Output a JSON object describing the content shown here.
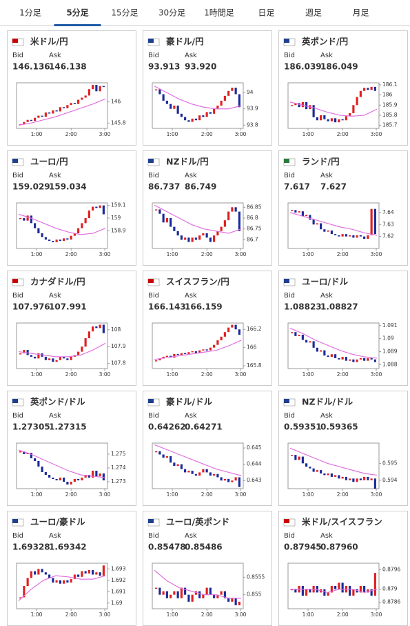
{
  "tabs": [
    "1分足",
    "5分足",
    "15分足",
    "30分足",
    "1時間足",
    "日足",
    "週足",
    "月足"
  ],
  "active_tab": 1,
  "bid_label": "Bid",
  "ask_label": "Ask",
  "time_labels": [
    "1:00",
    "2:00",
    "3:00"
  ],
  "pairs": [
    {
      "name": "米ドル/円",
      "color": "#7030a0",
      "bid": "146.136",
      "ask": "146.138",
      "ylim": [
        145.75,
        146.18
      ],
      "yticks": [
        145.8,
        146
      ],
      "close": [
        145.79,
        145.81,
        145.83,
        145.82,
        145.85,
        145.87,
        145.86,
        145.9,
        145.89,
        145.92,
        145.91,
        145.95,
        145.94,
        145.97,
        145.99,
        145.98,
        146.02,
        146.04,
        146.06,
        146.12,
        146.16,
        146.1,
        146.15,
        146.14
      ],
      "ma": [
        145.78,
        145.8,
        145.83,
        145.86,
        145.9,
        145.94,
        145.98,
        146.03
      ]
    },
    {
      "name": "豪ドル/円",
      "color": "#7030a0",
      "bid": "93.913",
      "ask": "93.920",
      "ylim": [
        93.78,
        94.06
      ],
      "yticks": [
        93.8,
        93.9,
        94
      ],
      "close": [
        94.02,
        93.99,
        93.95,
        93.93,
        93.9,
        93.92,
        93.87,
        93.85,
        93.83,
        93.82,
        93.84,
        93.83,
        93.86,
        93.85,
        93.88,
        93.87,
        93.9,
        93.92,
        93.95,
        93.98,
        94.01,
        94.03,
        93.99,
        93.91
      ],
      "ma": [
        94.04,
        94.0,
        93.96,
        93.93,
        93.91,
        93.9,
        93.9,
        93.92
      ]
    },
    {
      "name": "英ポンド/円",
      "color": "#7030a0",
      "bid": "186.039",
      "ask": "186.049",
      "ylim": [
        185.67,
        186.12
      ],
      "yticks": [
        185.7,
        185.8,
        185.9,
        186,
        186.1
      ],
      "close": [
        185.9,
        185.92,
        185.88,
        185.93,
        185.86,
        185.9,
        185.78,
        185.75,
        185.8,
        185.76,
        185.74,
        185.77,
        185.73,
        185.76,
        185.75,
        185.79,
        185.82,
        185.9,
        185.98,
        186.04,
        186.07,
        186.05,
        186.08,
        186.04
      ],
      "ma": [
        185.93,
        185.9,
        185.87,
        185.83,
        185.8,
        185.79,
        185.8,
        185.86
      ]
    },
    {
      "name": "ユーロ/円",
      "color": "#7030a0",
      "bid": "159.029",
      "ask": "159.034",
      "ylim": [
        158.76,
        159.12
      ],
      "yticks": [
        158.9,
        159,
        159.1
      ],
      "close": [
        159.0,
        158.98,
        159.02,
        158.96,
        158.92,
        158.88,
        158.85,
        158.83,
        158.82,
        158.81,
        158.83,
        158.82,
        158.84,
        158.83,
        158.86,
        158.88,
        158.92,
        158.96,
        159.0,
        159.06,
        159.09,
        159.08,
        159.1,
        159.03
      ],
      "ma": [
        159.03,
        159.0,
        158.96,
        158.92,
        158.89,
        158.87,
        158.88,
        158.92
      ]
    },
    {
      "name": "NZドル/円",
      "color": "#7030a0",
      "bid": "86.737",
      "ask": "86.749",
      "ylim": [
        86.66,
        86.87
      ],
      "yticks": [
        86.7,
        86.75,
        86.8,
        86.85
      ],
      "close": [
        86.84,
        86.82,
        86.78,
        86.8,
        86.76,
        86.74,
        86.72,
        86.7,
        86.71,
        86.69,
        86.71,
        86.7,
        86.72,
        86.73,
        86.71,
        86.69,
        86.72,
        86.74,
        86.76,
        86.79,
        86.83,
        86.85,
        86.83,
        86.74
      ],
      "ma": [
        86.86,
        86.83,
        86.8,
        86.77,
        86.75,
        86.74,
        86.73,
        86.75
      ]
    },
    {
      "name": "ランド/円",
      "color": "#7030a0",
      "bid": "7.617",
      "ask": "7.627",
      "ylim": [
        7.61,
        7.648
      ],
      "yticks": [
        7.62,
        7.63,
        7.64
      ],
      "close": [
        7.642,
        7.64,
        7.641,
        7.637,
        7.638,
        7.634,
        7.63,
        7.631,
        7.626,
        7.624,
        7.625,
        7.622,
        7.621,
        7.62,
        7.622,
        7.62,
        7.621,
        7.619,
        7.621,
        7.62,
        7.618,
        7.621,
        7.643,
        7.622
      ],
      "ma": [
        7.64,
        7.637,
        7.634,
        7.631,
        7.628,
        7.626,
        7.623,
        7.621
      ]
    },
    {
      "name": "カナダドル/円",
      "color": "#7030a0",
      "bid": "107.976",
      "ask": "107.991",
      "ylim": [
        107.77,
        108.04
      ],
      "yticks": [
        107.8,
        107.9,
        108
      ],
      "close": [
        107.86,
        107.88,
        107.85,
        107.84,
        107.83,
        107.86,
        107.84,
        107.82,
        107.83,
        107.81,
        107.82,
        107.84,
        107.83,
        107.82,
        107.84,
        107.85,
        107.87,
        107.9,
        107.95,
        107.99,
        108.02,
        108.01,
        108.03,
        107.98
      ],
      "ma": [
        107.87,
        107.86,
        107.85,
        107.84,
        107.84,
        107.85,
        107.88,
        107.92
      ]
    },
    {
      "name": "スイスフラン/円",
      "color": "#1f5aa6",
      "bid": "166.143",
      "ask": "166.159",
      "ylim": [
        165.77,
        166.27
      ],
      "yticks": [
        165.8,
        166,
        166.2
      ],
      "close": [
        165.86,
        165.88,
        165.9,
        165.91,
        165.89,
        165.93,
        165.92,
        165.94,
        165.93,
        165.95,
        165.96,
        165.94,
        165.97,
        165.98,
        165.97,
        166.0,
        166.03,
        166.08,
        166.12,
        166.17,
        166.22,
        166.25,
        166.2,
        166.14
      ],
      "ma": [
        165.87,
        165.89,
        165.91,
        165.93,
        165.95,
        165.97,
        166.02,
        166.08
      ]
    },
    {
      "name": "ユーロ/ドル",
      "color": "#1f5aa6",
      "bid": "1.08823",
      "ask": "1.08827",
      "ylim": [
        1.0877,
        1.0912
      ],
      "yticks": [
        1.088,
        1.089,
        1.09,
        1.091
      ],
      "close": [
        1.0905,
        1.0902,
        1.0903,
        1.0899,
        1.0897,
        1.0898,
        1.0893,
        1.089,
        1.0891,
        1.0887,
        1.0886,
        1.0888,
        1.0885,
        1.0884,
        1.0886,
        1.0883,
        1.0884,
        1.0882,
        1.0884,
        1.0885,
        1.0883,
        1.0885,
        1.0884,
        1.0882
      ],
      "ma": [
        1.0908,
        1.0904,
        1.0899,
        1.0895,
        1.0891,
        1.0888,
        1.0886,
        1.0885
      ]
    },
    {
      "name": "英ポンド/ドル",
      "color": "#1f5aa6",
      "bid": "1.27305",
      "ask": "1.27315",
      "ylim": [
        1.2725,
        1.2758
      ],
      "yticks": [
        1.273,
        1.274,
        1.275
      ],
      "close": [
        1.2752,
        1.275,
        1.2751,
        1.2747,
        1.2745,
        1.2741,
        1.2737,
        1.2735,
        1.2733,
        1.2732,
        1.2731,
        1.2733,
        1.273,
        1.2728,
        1.273,
        1.2732,
        1.2731,
        1.2733,
        1.2735,
        1.2733,
        1.2738,
        1.2734,
        1.2736,
        1.2731
      ],
      "ma": [
        1.2753,
        1.275,
        1.2746,
        1.2742,
        1.2738,
        1.2735,
        1.2734,
        1.2733
      ]
    },
    {
      "name": "豪ドル/ドル",
      "color": "#1f5aa6",
      "bid": "0.64262",
      "ask": "0.64271",
      "ylim": [
        0.6425,
        0.6453
      ],
      "yticks": [
        0.643,
        0.644,
        0.645
      ],
      "close": [
        0.6448,
        0.6446,
        0.6444,
        0.6445,
        0.6441,
        0.6439,
        0.644,
        0.6437,
        0.6435,
        0.6436,
        0.6434,
        0.6433,
        0.6435,
        0.6437,
        0.6435,
        0.6433,
        0.6434,
        0.6432,
        0.643,
        0.6431,
        0.6429,
        0.643,
        0.6432,
        0.6426
      ],
      "ma": [
        0.6452,
        0.6449,
        0.6446,
        0.6443,
        0.644,
        0.6437,
        0.6435,
        0.6433
      ]
    },
    {
      "name": "NZドル/ドル",
      "color": "#1f5aa6",
      "bid": "0.59351",
      "ask": "0.59365",
      "ylim": [
        0.5935,
        0.5962
      ],
      "yticks": [
        0.594,
        0.595
      ],
      "close": [
        0.5955,
        0.5952,
        0.5954,
        0.595,
        0.5948,
        0.5947,
        0.5945,
        0.5946,
        0.5944,
        0.5943,
        0.5944,
        0.5942,
        0.5943,
        0.5941,
        0.5942,
        0.594,
        0.5941,
        0.5939,
        0.5941,
        0.594,
        0.5942,
        0.594,
        0.5941,
        0.5935
      ],
      "ma": [
        0.5959,
        0.5956,
        0.5953,
        0.595,
        0.5948,
        0.5946,
        0.5944,
        0.5943
      ]
    },
    {
      "name": "ユーロ/豪ドル",
      "color": "#1f5aa6",
      "bid": "1.69328",
      "ask": "1.69342",
      "ylim": [
        1.6895,
        1.6935
      ],
      "yticks": [
        1.69,
        1.691,
        1.692,
        1.693
      ],
      "close": [
        1.6905,
        1.6915,
        1.6922,
        1.6928,
        1.6925,
        1.693,
        1.6927,
        1.6925,
        1.6922,
        1.6918,
        1.692,
        1.6917,
        1.692,
        1.6918,
        1.6921,
        1.6925,
        1.6923,
        1.6928,
        1.6926,
        1.6929,
        1.6925,
        1.6927,
        1.6924,
        1.6933
      ],
      "ma": [
        1.6902,
        1.6912,
        1.692,
        1.6924,
        1.6923,
        1.6921,
        1.6921,
        1.6924
      ]
    },
    {
      "name": "ユーロ/英ポンド",
      "color": "#1f5aa6",
      "bid": "0.85478",
      "ask": "0.85486",
      "ylim": [
        0.8546,
        0.8559
      ],
      "yticks": [
        0.855,
        0.8555
      ],
      "close": [
        0.8552,
        0.855,
        0.8551,
        0.8549,
        0.855,
        0.8551,
        0.8549,
        0.8552,
        0.855,
        0.8548,
        0.855,
        0.8551,
        0.8549,
        0.855,
        0.8552,
        0.855,
        0.8549,
        0.855,
        0.8551,
        0.8549,
        0.8548,
        0.8549,
        0.8547,
        0.8548
      ],
      "ma": [
        0.8557,
        0.8554,
        0.8552,
        0.8551,
        0.855,
        0.855,
        0.8549,
        0.8549
      ]
    },
    {
      "name": "米ドル/スイスフラン",
      "color": "#1f5aa6",
      "bid": "0.87945",
      "ask": "0.87960",
      "ylim": [
        0.8784,
        0.8798
      ],
      "yticks": [
        0.8786,
        0.879,
        0.8796
      ],
      "close": [
        0.879,
        0.8789,
        0.8791,
        0.8788,
        0.879,
        0.8789,
        0.8791,
        0.8789,
        0.879,
        0.8788,
        0.8789,
        0.8791,
        0.879,
        0.8792,
        0.8789,
        0.8791,
        0.8788,
        0.879,
        0.8789,
        0.8791,
        0.8789,
        0.879,
        0.8788,
        0.8795
      ],
      "ma": [
        0.879,
        0.879,
        0.879,
        0.8789,
        0.879,
        0.879,
        0.8789,
        0.879
      ]
    }
  ]
}
